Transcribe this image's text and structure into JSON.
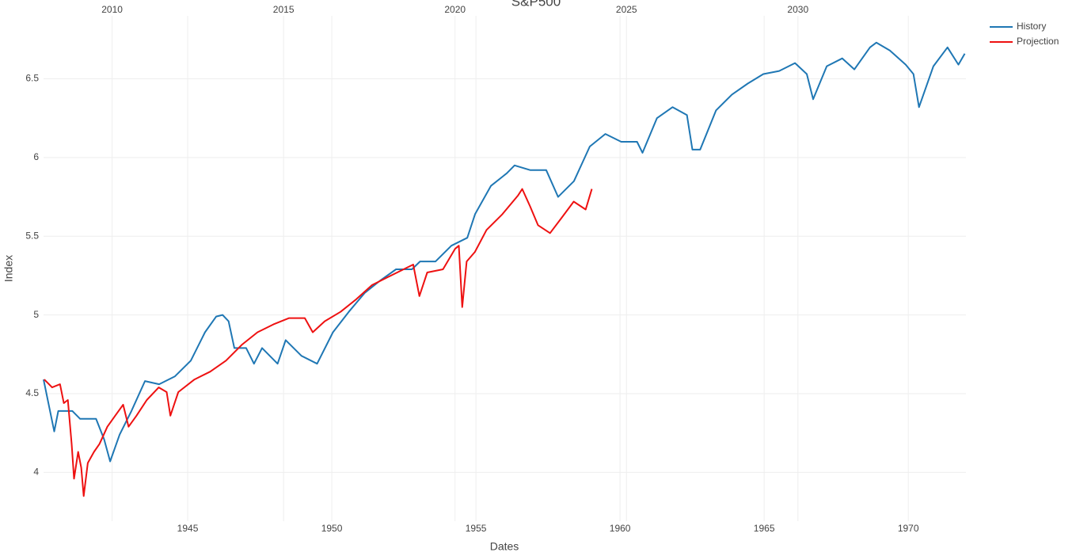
{
  "chart_data": {
    "type": "line",
    "title": "S&P500",
    "xlabel": "Dates",
    "ylabel": "Index",
    "xlim": [
      1940,
      1972
    ],
    "xticks": [
      1945,
      1950,
      1955,
      1960,
      1965,
      1970
    ],
    "x2lim": [
      2008,
      2034.9
    ],
    "x2ticks": [
      2010,
      2015,
      2020,
      2025,
      2030
    ],
    "ylim": [
      3.69,
      6.9
    ],
    "yticks": [
      4,
      4.5,
      5,
      5.5,
      6,
      6.5
    ],
    "grid": true,
    "legend": "right",
    "series": [
      {
        "name": "History",
        "color": "#1f77b4",
        "x": [
          1940.0,
          1940.37,
          1940.51,
          1941.0,
          1941.27,
          1941.82,
          1942.1,
          1942.31,
          1942.64,
          1943.05,
          1943.52,
          1944.01,
          1944.56,
          1945.11,
          1945.6,
          1945.99,
          1946.21,
          1946.42,
          1946.62,
          1947.03,
          1947.3,
          1947.58,
          1948.12,
          1948.4,
          1948.95,
          1949.49,
          1950.04,
          1950.59,
          1951.14,
          1951.69,
          1952.23,
          1952.78,
          1953.06,
          1953.6,
          1954.15,
          1954.7,
          1954.97,
          1955.52,
          1956.07,
          1956.34,
          1956.89,
          1957.44,
          1957.85,
          1958.4,
          1958.95,
          1959.49,
          1960.04,
          1960.59,
          1960.78,
          1961.28,
          1961.82,
          1962.32,
          1962.51,
          1962.78,
          1963.33,
          1963.88,
          1964.43,
          1964.97,
          1965.52,
          1966.07,
          1966.48,
          1966.7,
          1967.17,
          1967.71,
          1968.13,
          1968.67,
          1968.89,
          1969.36,
          1969.91,
          1970.18,
          1970.37,
          1970.87,
          1971.36,
          1971.74,
          1971.96
        ],
        "values": [
          4.59,
          4.26,
          4.39,
          4.39,
          4.34,
          4.34,
          4.21,
          4.07,
          4.24,
          4.39,
          4.58,
          4.56,
          4.61,
          4.71,
          4.89,
          4.99,
          5.0,
          4.96,
          4.79,
          4.79,
          4.69,
          4.79,
          4.69,
          4.84,
          4.74,
          4.69,
          4.89,
          5.02,
          5.14,
          5.22,
          5.29,
          5.29,
          5.34,
          5.34,
          5.44,
          5.49,
          5.64,
          5.82,
          5.9,
          5.95,
          5.92,
          5.92,
          5.75,
          5.85,
          6.07,
          6.15,
          6.1,
          6.1,
          6.03,
          6.25,
          6.32,
          6.27,
          6.05,
          6.05,
          6.3,
          6.4,
          6.47,
          6.53,
          6.55,
          6.6,
          6.53,
          6.37,
          6.58,
          6.63,
          6.56,
          6.7,
          6.73,
          6.68,
          6.59,
          6.53,
          6.32,
          6.58,
          6.7,
          6.59,
          6.66
        ]
      },
      {
        "name": "Projection",
        "color": "#ee1111",
        "axis": "x2",
        "x": [
          2008.02,
          2008.25,
          2008.48,
          2008.59,
          2008.71,
          2008.82,
          2008.89,
          2009.01,
          2009.1,
          2009.17,
          2009.29,
          2009.47,
          2009.63,
          2009.86,
          2010.09,
          2010.32,
          2010.48,
          2010.71,
          2011.01,
          2011.36,
          2011.59,
          2011.7,
          2011.93,
          2012.4,
          2012.86,
          2013.32,
          2013.78,
          2014.24,
          2014.7,
          2015.16,
          2015.62,
          2015.85,
          2016.2,
          2016.66,
          2017.12,
          2017.58,
          2018.04,
          2018.5,
          2018.78,
          2018.96,
          2019.19,
          2019.65,
          2020.0,
          2020.11,
          2020.21,
          2020.34,
          2020.58,
          2020.92,
          2021.38,
          2021.84,
          2021.96,
          2022.19,
          2022.42,
          2022.77,
          2023.12,
          2023.46,
          2023.81,
          2023.99
        ],
        "values": [
          4.59,
          4.54,
          4.56,
          4.44,
          4.46,
          4.18,
          3.96,
          4.13,
          4.03,
          3.85,
          4.06,
          4.13,
          4.18,
          4.29,
          4.36,
          4.43,
          4.29,
          4.36,
          4.46,
          4.54,
          4.51,
          4.36,
          4.51,
          4.59,
          4.64,
          4.71,
          4.81,
          4.89,
          4.94,
          4.98,
          4.98,
          4.89,
          4.96,
          5.02,
          5.1,
          5.19,
          5.24,
          5.29,
          5.32,
          5.12,
          5.27,
          5.29,
          5.42,
          5.44,
          5.05,
          5.34,
          5.4,
          5.54,
          5.64,
          5.76,
          5.8,
          5.69,
          5.57,
          5.52,
          5.62,
          5.72,
          5.67,
          5.8
        ]
      }
    ]
  }
}
